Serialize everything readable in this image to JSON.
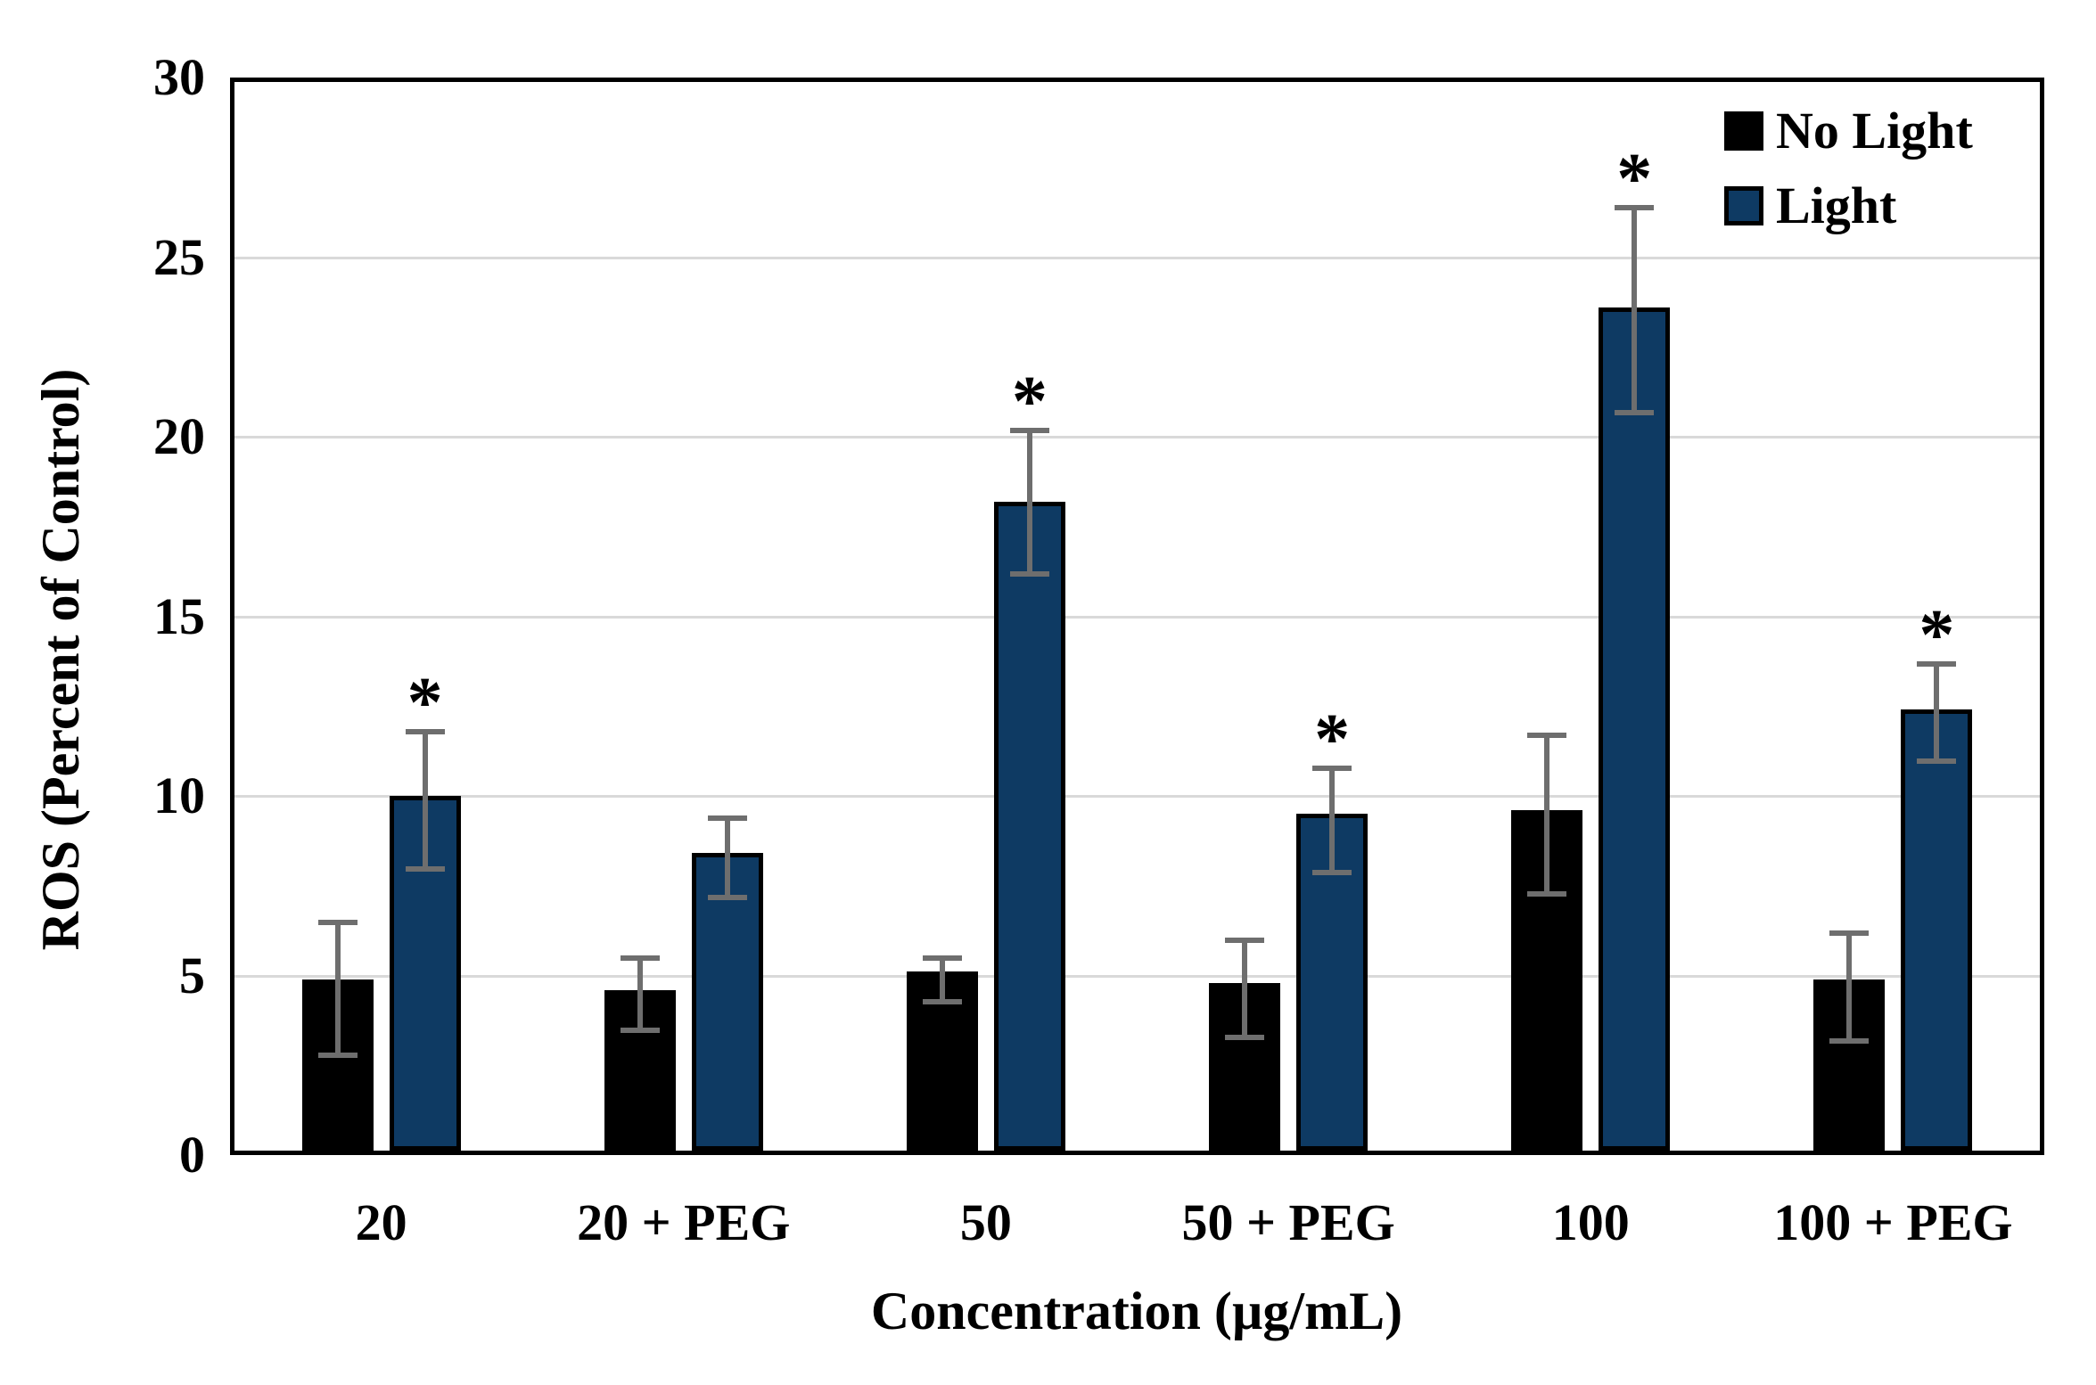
{
  "figure": {
    "y_axis_title": "ROS (Percent of Control)",
    "x_axis_title": "Concentration (µg/mL)",
    "sig_marker": "*",
    "colors": {
      "no_light_bar": "#000000",
      "light_bar": "#0e3a63",
      "bar_outline": "#000000",
      "error_bar": "#6e6e6e",
      "gridline": "#d9d9d9",
      "frame": "#000000"
    }
  },
  "legend": {
    "position": "top-right",
    "items": [
      {
        "label": "No Light",
        "color": "#000000"
      },
      {
        "label": "Light",
        "color": "#0e3a63"
      }
    ]
  },
  "chart_data": {
    "type": "bar",
    "title": "",
    "xlabel": "Concentration (µg/mL)",
    "ylabel": "ROS (Percent of Control)",
    "categories": [
      "20",
      "20 + PEG",
      "50",
      "50 + PEG",
      "100",
      "100 + PEG"
    ],
    "series": [
      {
        "name": "No Light",
        "color": "#000000",
        "values": [
          4.9,
          4.6,
          5.1,
          4.8,
          9.6,
          4.9
        ],
        "err_low_cap": [
          2.9,
          3.6,
          4.4,
          3.4,
          7.4,
          3.3
        ],
        "err_high_cap": [
          6.6,
          5.6,
          5.6,
          6.1,
          11.8,
          6.3
        ],
        "significant": [
          false,
          false,
          false,
          false,
          false,
          false
        ]
      },
      {
        "name": "Light",
        "color": "#0e3a63",
        "values": [
          10.0,
          8.4,
          18.2,
          9.5,
          23.6,
          12.4
        ],
        "err_low_cap": [
          8.1,
          7.3,
          16.3,
          8.0,
          20.8,
          11.1
        ],
        "err_high_cap": [
          11.9,
          9.5,
          20.3,
          10.9,
          26.5,
          13.8
        ],
        "significant": [
          true,
          false,
          true,
          true,
          true,
          true
        ]
      }
    ],
    "ylim": [
      0,
      30
    ],
    "ytick_step": 5,
    "grid": true,
    "legend_position": "top-right",
    "error_bar_color": "#6e6e6e",
    "significance_marker": "*"
  }
}
